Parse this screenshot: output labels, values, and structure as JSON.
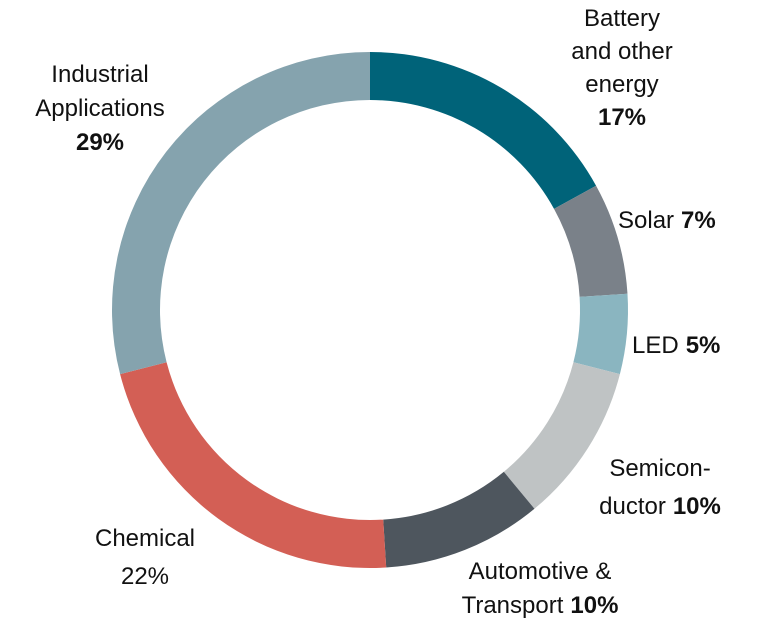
{
  "chart_data": {
    "type": "donut",
    "categories": [
      [
        "Battery",
        "and other",
        "energy"
      ],
      [
        "Solar"
      ],
      [
        "LED"
      ],
      [
        "Semicon-",
        "ductor"
      ],
      [
        "Automotive &",
        "Transport"
      ],
      [
        "Chemical"
      ],
      [
        "Industrial",
        "Applications"
      ]
    ],
    "values": [
      17,
      7,
      5,
      10,
      10,
      22,
      29
    ],
    "value_labels": [
      "17%",
      "7%",
      "5%",
      "10%",
      "10%",
      "22%",
      "29%"
    ],
    "colors": [
      "#006379",
      "#7a8189",
      "#8ab5c0",
      "#bfc3c4",
      "#4e565e",
      "#d35f55",
      "#85a3ae"
    ]
  }
}
